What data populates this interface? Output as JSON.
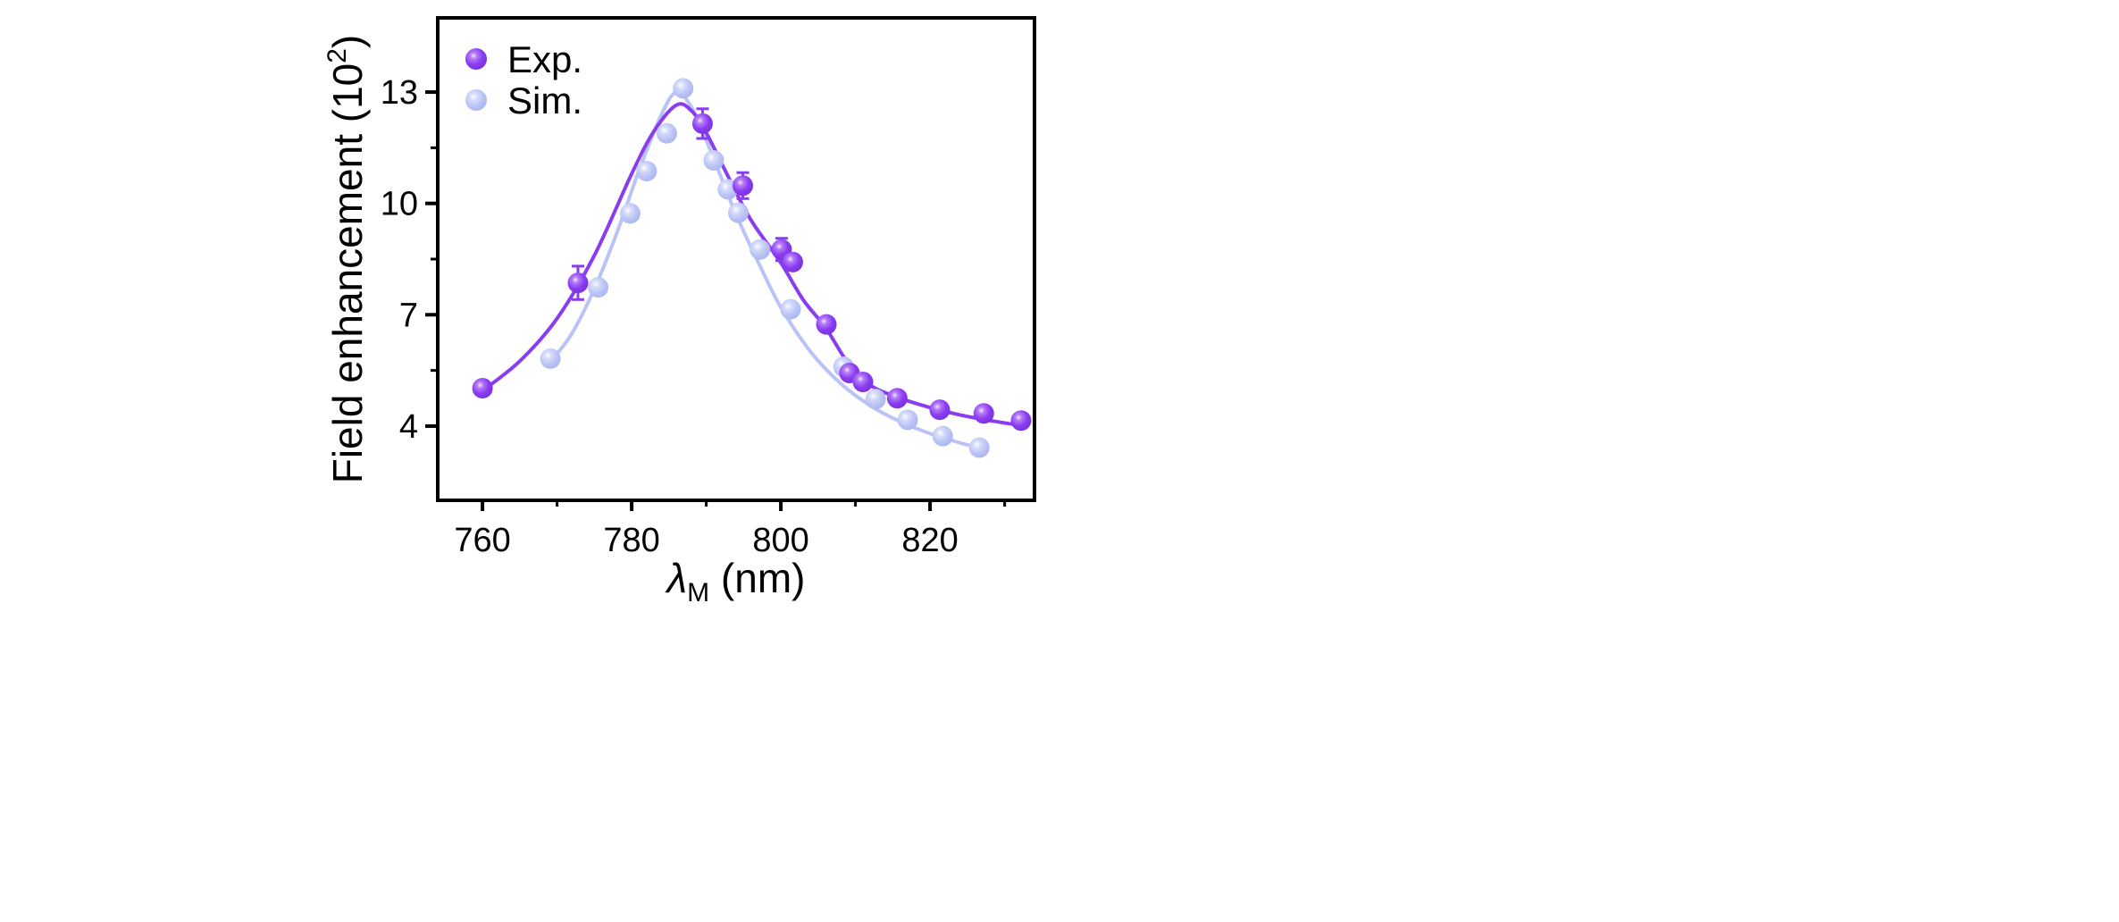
{
  "chart_data": {
    "type": "scatter",
    "xlabel_symbol": "λ",
    "xlabel_sub": "M",
    "xlabel_unit": " (nm)",
    "ylabel": "Field enhancement (10",
    "ylabel_sup": "2",
    "ylabel_close": ")",
    "xlim": [
      754,
      834
    ],
    "ylim": [
      2,
      15
    ],
    "xticks": [
      760,
      780,
      800,
      820
    ],
    "xminor": [
      770,
      790,
      810,
      830
    ],
    "yticks": [
      4,
      7,
      10,
      13
    ],
    "yminor": [
      5.5,
      8.5,
      11.5
    ],
    "grid": false,
    "legend_placement": "top-left",
    "series": [
      {
        "name": "Exp.",
        "color": "#8a3cf0",
        "x": [
          760.0,
          772.8,
          789.5,
          794.9,
          800.1,
          801.6,
          806.1,
          809.2,
          811.0,
          815.6,
          821.3,
          827.2,
          832.2
        ],
        "y": [
          5.02,
          7.86,
          12.15,
          10.48,
          8.76,
          8.42,
          6.74,
          5.43,
          5.19,
          4.75,
          4.44,
          4.34,
          4.15
        ],
        "error": [
          0.1,
          0.45,
          0.4,
          0.35,
          0.3,
          0.15,
          0.15,
          0.1,
          0.15,
          0.1,
          0.1,
          0.1,
          0.1
        ],
        "fit_x": [
          760,
          765,
          770,
          775,
          780,
          783,
          786,
          788,
          790,
          793,
          796,
          800,
          803,
          806,
          809,
          812,
          816,
          820,
          824,
          828,
          832
        ],
        "fit_y": [
          4.95,
          5.75,
          6.9,
          8.6,
          10.8,
          11.95,
          12.65,
          12.5,
          11.9,
          10.7,
          9.55,
          8.4,
          7.4,
          6.65,
          5.7,
          5.1,
          4.75,
          4.5,
          4.3,
          4.15,
          4.02
        ]
      },
      {
        "name": "Sim.",
        "color": "#b9c3f5",
        "x": [
          769.1,
          775.5,
          779.8,
          782.0,
          784.7,
          786.9,
          791.0,
          792.9,
          794.3,
          797.2,
          801.3,
          808.4,
          812.7,
          817.0,
          821.7,
          826.6
        ],
        "y": [
          5.82,
          7.74,
          9.73,
          10.87,
          11.89,
          13.1,
          11.16,
          10.38,
          9.75,
          8.76,
          7.15,
          5.6,
          4.73,
          4.17,
          3.73,
          3.42
        ],
        "fit_x": [
          769,
          772,
          775,
          778,
          781,
          784,
          786,
          788,
          790,
          792,
          794,
          797,
          800,
          804,
          808,
          812,
          816,
          820,
          824,
          826.6
        ],
        "fit_y": [
          5.7,
          6.5,
          7.7,
          9.2,
          10.9,
          12.4,
          13.0,
          12.6,
          11.7,
          10.7,
          9.7,
          8.4,
          7.2,
          6.0,
          5.15,
          4.55,
          4.12,
          3.8,
          3.55,
          3.42
        ]
      }
    ]
  }
}
